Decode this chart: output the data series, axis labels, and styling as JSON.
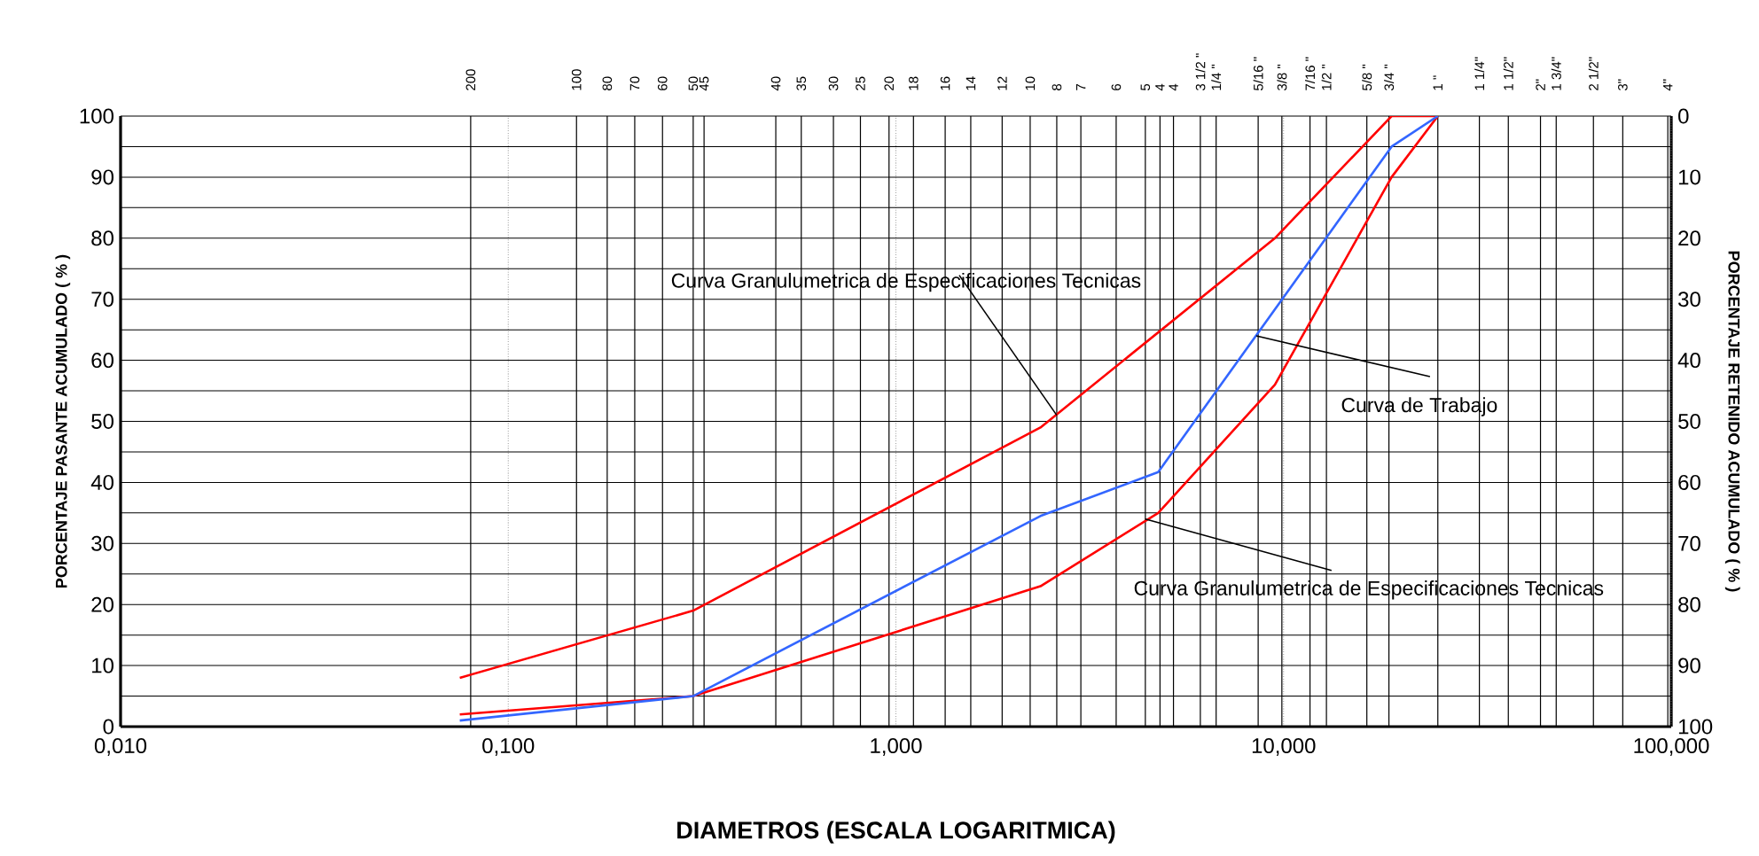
{
  "chart_data": {
    "type": "line",
    "xlabel": "DIAMETROS (ESCALA LOGARITMICA)",
    "ylabel": "PORCENTAJE PASANTE ACUMULADO ( % )",
    "y2label": "PORCENTAJE RETENIDO ACUMULADO ( % )",
    "log": "x",
    "grid": true,
    "xlim": [
      0.01,
      100
    ],
    "xticks": [
      {
        "value": 0.01,
        "label": "0,010"
      },
      {
        "value": 0.1,
        "label": "0,100"
      },
      {
        "value": 1,
        "label": "1,000"
      },
      {
        "value": 10,
        "label": "10,000"
      },
      {
        "value": 100,
        "label": "100,000"
      }
    ],
    "ylim": [
      0,
      100
    ],
    "yticks": [
      0,
      {
        "value": 5,
        "label": null
      },
      10,
      {
        "value": 15,
        "label": null
      },
      20,
      {
        "value": 25,
        "label": null
      },
      30,
      {
        "value": 35,
        "label": null
      },
      40,
      {
        "value": 45,
        "label": null
      },
      50,
      {
        "value": 55,
        "label": null
      },
      60,
      {
        "value": 65,
        "label": null
      },
      70,
      {
        "value": 75,
        "label": null
      },
      80,
      {
        "value": 85,
        "label": null
      },
      90,
      {
        "value": 95,
        "label": null
      },
      100
    ],
    "y2lim": [
      100,
      0
    ],
    "y2ticks": [
      0,
      10,
      20,
      30,
      40,
      50,
      60,
      70,
      80,
      90,
      100
    ],
    "ref_lines": [
      {
        "axis": "x",
        "value": 0.08
      },
      {
        "axis": "x",
        "value": 0.15
      },
      {
        "axis": "x",
        "value": 0.18
      },
      {
        "axis": "x",
        "value": 0.212
      },
      {
        "axis": "x",
        "value": 0.25
      },
      {
        "axis": "x",
        "value": 0.3
      },
      {
        "axis": "x",
        "value": 0.32
      },
      {
        "axis": "x",
        "value": 0.49
      },
      {
        "axis": "x",
        "value": 0.57
      },
      {
        "axis": "x",
        "value": 0.69
      },
      {
        "axis": "x",
        "value": 0.81
      },
      {
        "axis": "x",
        "value": 0.96
      },
      {
        "axis": "x",
        "value": 1.11
      },
      {
        "axis": "x",
        "value": 1.34
      },
      {
        "axis": "x",
        "value": 1.56
      },
      {
        "axis": "x",
        "value": 1.88
      },
      {
        "axis": "x",
        "value": 2.22
      },
      {
        "axis": "x",
        "value": 2.6
      },
      {
        "axis": "x",
        "value": 3.0
      },
      {
        "axis": "x",
        "value": 3.7
      },
      {
        "axis": "x",
        "value": 4.4
      },
      {
        "axis": "x",
        "value": 4.8
      },
      {
        "axis": "x",
        "value": 5.2
      },
      {
        "axis": "x",
        "value": 6.1
      },
      {
        "axis": "x",
        "value": 6.7
      },
      {
        "axis": "x",
        "value": 8.6
      },
      {
        "axis": "x",
        "value": 9.9
      },
      {
        "axis": "x",
        "value": 11.7
      },
      {
        "axis": "x",
        "value": 12.9
      },
      {
        "axis": "x",
        "value": 16.4
      },
      {
        "axis": "x",
        "value": 18.7
      },
      {
        "axis": "x",
        "value": 25
      },
      {
        "axis": "x",
        "value": 32
      },
      {
        "axis": "x",
        "value": 38
      },
      {
        "axis": "x",
        "value": 46
      },
      {
        "axis": "x",
        "value": 50.5
      },
      {
        "axis": "x",
        "value": 63
      },
      {
        "axis": "x",
        "value": 75
      },
      {
        "axis": "x",
        "value": 98
      }
    ],
    "series": [
      {
        "color": "#ff0000",
        "x": [
          0.075,
          0.3,
          2.36,
          9.5,
          19,
          25
        ],
        "values": [
          8,
          19,
          49,
          80,
          100,
          100
        ]
      },
      {
        "color": "#ff0000",
        "x": [
          0.075,
          0.3,
          2.36,
          4.75,
          9.5,
          19,
          25
        ],
        "values": [
          2,
          5,
          23,
          35,
          56,
          90,
          100
        ]
      },
      {
        "color": "#3366ff",
        "x": [
          0.075,
          0.3,
          2.36,
          4.75,
          19,
          25
        ],
        "values": [
          1,
          5,
          34.5,
          41.7,
          95,
          100
        ]
      }
    ],
    "annotations": [
      {
        "text": "Curva Granulumetrica de Especificaciones Tecnicas",
        "x": 2.6,
        "y": 51
      },
      {
        "text": "Curva de Trabajo",
        "x": 8.5,
        "y": 64
      },
      {
        "text": "Curva Granulumetrica de Especificaciones Tecnicas",
        "x": 4.4,
        "y": 34
      },
      {
        "text": "200",
        "x": 0.08,
        "y": 100
      },
      {
        "text": "100",
        "x": 0.15,
        "y": 100
      },
      {
        "text": "80",
        "x": 0.18,
        "y": 100
      },
      {
        "text": "70",
        "x": 0.212,
        "y": 100
      },
      {
        "text": "60",
        "x": 0.25,
        "y": 100
      },
      {
        "text": "50",
        "x": 0.3,
        "y": 100
      },
      {
        "text": "45",
        "x": 0.32,
        "y": 100
      },
      {
        "text": "40",
        "x": 0.49,
        "y": 100
      },
      {
        "text": "35",
        "x": 0.57,
        "y": 100
      },
      {
        "text": "30",
        "x": 0.69,
        "y": 100
      },
      {
        "text": "25",
        "x": 0.81,
        "y": 100
      },
      {
        "text": "20",
        "x": 0.96,
        "y": 100
      },
      {
        "text": "18",
        "x": 1.11,
        "y": 100
      },
      {
        "text": "16",
        "x": 1.34,
        "y": 100
      },
      {
        "text": "14",
        "x": 1.56,
        "y": 100
      },
      {
        "text": "12",
        "x": 1.88,
        "y": 100
      },
      {
        "text": "10",
        "x": 2.22,
        "y": 100
      },
      {
        "text": "8",
        "x": 2.6,
        "y": 100
      },
      {
        "text": "7",
        "x": 3.0,
        "y": 100
      },
      {
        "text": "6",
        "x": 3.7,
        "y": 100
      },
      {
        "text": "5",
        "x": 4.4,
        "y": 100
      },
      {
        "text": "4",
        "x": 4.8,
        "y": 100
      },
      {
        "text": "4",
        "x": 5.2,
        "y": 100
      },
      {
        "text": "3 1/2 \"",
        "x": 6.1,
        "y": 100
      },
      {
        "text": "1/4 \"",
        "x": 6.7,
        "y": 100
      },
      {
        "text": "5/16 \"",
        "x": 8.6,
        "y": 100
      },
      {
        "text": "3/8 \"",
        "x": 9.9,
        "y": 100
      },
      {
        "text": "7/16 \"",
        "x": 11.7,
        "y": 100
      },
      {
        "text": "1/2 \"",
        "x": 12.9,
        "y": 100
      },
      {
        "text": "5/8 \"",
        "x": 16.4,
        "y": 100
      },
      {
        "text": "3/4 \"",
        "x": 18.7,
        "y": 100
      },
      {
        "text": "1 \"",
        "x": 25,
        "y": 100
      },
      {
        "text": "1 1/4\"",
        "x": 32,
        "y": 100
      },
      {
        "text": "1 1/2\"",
        "x": 38,
        "y": 100
      },
      {
        "text": "2\"",
        "x": 46,
        "y": 100
      },
      {
        "text": "1 3/4\"",
        "x": 50.5,
        "y": 100
      },
      {
        "text": "2 1/2\"",
        "x": 63,
        "y": 100
      },
      {
        "text": "3\"",
        "x": 75,
        "y": 100
      },
      {
        "text": "4\"",
        "x": 98,
        "y": 100
      }
    ]
  }
}
